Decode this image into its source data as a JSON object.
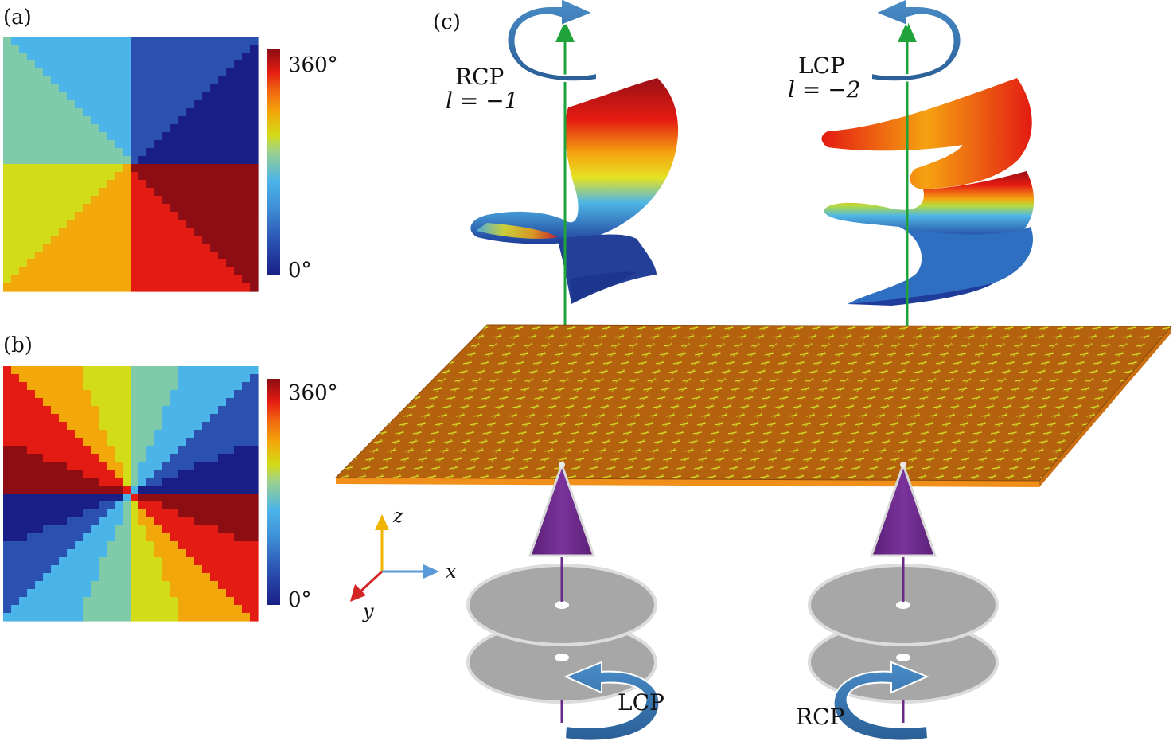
{
  "panels": {
    "a": {
      "label": "(a)",
      "colorbar": {
        "max_label": "360°",
        "min_label": "0°"
      },
      "description_values": {
        "topological_charge": 1
      }
    },
    "b": {
      "label": "(b)",
      "colorbar": {
        "max_label": "360°",
        "min_label": "0°"
      },
      "description_values": {
        "topological_charge": 2
      }
    },
    "c": {
      "label": "(c)"
    }
  },
  "beams": {
    "left": {
      "output_polarization": "RCP",
      "output_charge": "l = −1",
      "input_polarization": "LCP"
    },
    "right": {
      "output_polarization": "LCP",
      "output_charge": "l = −2",
      "input_polarization": "RCP"
    }
  },
  "axes": {
    "x": "x",
    "y": "y",
    "z": "z"
  },
  "colors": {
    "colormap": [
      "#1a1f86",
      "#2a50b0",
      "#3f8fd6",
      "#4bb4e8",
      "#7fcaa8",
      "#d2dc18",
      "#f2a80a",
      "#f0640f",
      "#e41b12",
      "#8c0d14"
    ],
    "metasurface": "#b5620f",
    "metasurface_edge": "#f0901b",
    "antenna": "#d6e82a",
    "beam_axis": "#1fa33a",
    "arrow": "#2e6da4",
    "cone": "#6b2a8a",
    "disc": "#a7a7a7",
    "axis_z": "#f0b400",
    "axis_x": "#5a9ad8",
    "axis_y": "#d42424"
  }
}
